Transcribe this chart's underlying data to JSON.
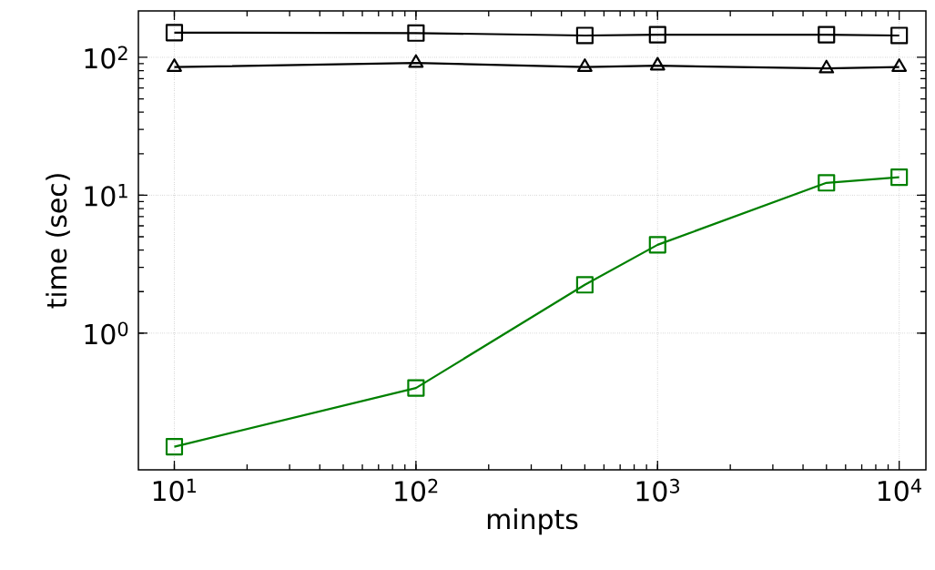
{
  "chart_data": {
    "type": "line",
    "xlabel": "minpts",
    "ylabel": "time (sec)",
    "log": "xy",
    "grid": true,
    "line_style": "solid",
    "x": [
      10,
      100,
      500,
      1000,
      5000,
      10000
    ],
    "xlim": [
      7.1,
      12900
    ],
    "ylim": [
      0.102,
      217
    ],
    "xticks": [
      {
        "value": 10,
        "label": "10$^{1}$"
      },
      {
        "value": 100,
        "label": "10$^{2}$"
      },
      {
        "value": 1000,
        "label": "10$^{3}$"
      },
      {
        "value": 10000,
        "label": "10$^{4}$"
      }
    ],
    "yticks": [
      {
        "value": 1,
        "label": "10$^{0}$"
      },
      {
        "value": 10,
        "label": "10$^{1}$"
      },
      {
        "value": 100,
        "label": "10$^{2}$"
      }
    ],
    "series": [
      {
        "color": "#000000",
        "marker": "square",
        "values": [
          151,
          150,
          144,
          146,
          146,
          144
        ]
      },
      {
        "color": "#000000",
        "marker": "triangle",
        "values": [
          85,
          91,
          85,
          87,
          83,
          85
        ]
      },
      {
        "color": "#008000",
        "marker": "square",
        "values": [
          0.15,
          0.4,
          2.24,
          4.37,
          12.3,
          13.5
        ]
      }
    ]
  }
}
